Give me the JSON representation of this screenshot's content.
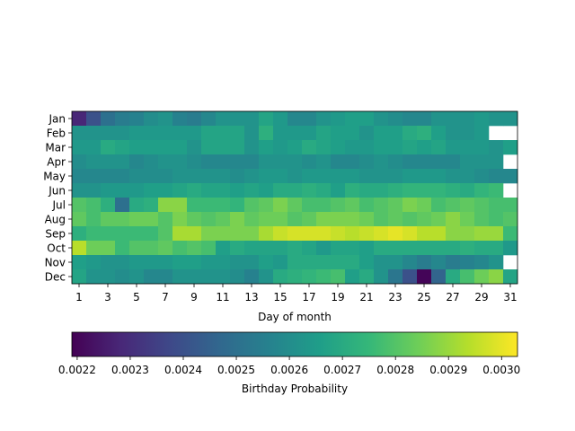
{
  "chart_data": {
    "type": "heatmap",
    "xlabel": "Day of month",
    "colorbar_label": "Birthday Probability",
    "colormap": "viridis",
    "vmin": 0.00219,
    "vmax": 0.00303,
    "colorbar_ticks": [
      "0.0022",
      "0.0023",
      "0.0024",
      "0.0025",
      "0.0026",
      "0.0027",
      "0.0028",
      "0.0029",
      "0.0030"
    ],
    "colorbar_tick_values": [
      0.0022,
      0.0023,
      0.0024,
      0.0025,
      0.0026,
      0.0027,
      0.0028,
      0.0029,
      0.003
    ],
    "months": [
      "Jan",
      "Feb",
      "Mar",
      "Apr",
      "May",
      "Jun",
      "Jul",
      "Aug",
      "Sep",
      "Oct",
      "Nov",
      "Dec"
    ],
    "days": [
      1,
      2,
      3,
      4,
      5,
      6,
      7,
      8,
      9,
      10,
      11,
      12,
      13,
      14,
      15,
      16,
      17,
      18,
      19,
      20,
      21,
      22,
      23,
      24,
      25,
      26,
      27,
      28,
      29,
      30,
      31
    ],
    "x_ticks": [
      1,
      3,
      5,
      7,
      9,
      11,
      13,
      15,
      17,
      19,
      21,
      23,
      25,
      27,
      29,
      31
    ],
    "values": [
      [
        0.00228,
        0.0024,
        0.0025,
        0.00254,
        0.00256,
        0.0026,
        0.00262,
        0.00256,
        0.00254,
        0.00258,
        0.00262,
        0.00262,
        0.00262,
        0.00268,
        0.00264,
        0.00258,
        0.00258,
        0.00262,
        0.00264,
        0.00266,
        0.00266,
        0.00262,
        0.0026,
        0.00258,
        0.00258,
        0.00262,
        0.00262,
        0.00262,
        0.00264,
        0.00262,
        0.00262
      ],
      [
        0.00262,
        0.00262,
        0.00262,
        0.00262,
        0.00264,
        0.00264,
        0.00264,
        0.00264,
        0.00264,
        0.00268,
        0.00268,
        0.00268,
        0.00262,
        0.00272,
        0.00264,
        0.00264,
        0.00264,
        0.00268,
        0.00266,
        0.00266,
        0.00262,
        0.00266,
        0.00266,
        0.0027,
        0.00272,
        0.00266,
        0.00262,
        0.00262,
        0.00264,
        null,
        null
      ],
      [
        0.00264,
        0.00264,
        0.0027,
        0.00268,
        0.00266,
        0.00266,
        0.00266,
        0.00266,
        0.00262,
        0.00268,
        0.00268,
        0.00268,
        0.00262,
        0.00266,
        0.00264,
        0.00266,
        0.0027,
        0.00268,
        0.00266,
        0.00264,
        0.00264,
        0.00266,
        0.00266,
        0.00268,
        0.00266,
        0.00268,
        0.00264,
        0.00264,
        0.00264,
        0.00262,
        0.00266
      ],
      [
        0.0026,
        0.00262,
        0.00262,
        0.00262,
        0.00258,
        0.0026,
        0.00262,
        0.00262,
        0.0026,
        0.00258,
        0.00258,
        0.00258,
        0.00258,
        0.00262,
        0.00262,
        0.00262,
        0.0026,
        0.00262,
        0.00258,
        0.00258,
        0.0026,
        0.00262,
        0.0026,
        0.00258,
        0.00258,
        0.00258,
        0.00258,
        0.00262,
        0.00262,
        0.00262,
        null
      ],
      [
        0.00258,
        0.00258,
        0.00258,
        0.00258,
        0.0026,
        0.0026,
        0.0026,
        0.00262,
        0.00262,
        0.00262,
        0.00262,
        0.0026,
        0.00262,
        0.00264,
        0.00264,
        0.00262,
        0.00264,
        0.00264,
        0.00264,
        0.00264,
        0.00262,
        0.00262,
        0.00262,
        0.00264,
        0.00264,
        0.00264,
        0.00262,
        0.00262,
        0.0026,
        0.00258,
        0.00258
      ],
      [
        0.00262,
        0.00262,
        0.00264,
        0.00264,
        0.00264,
        0.00266,
        0.00266,
        0.00268,
        0.0027,
        0.00268,
        0.00268,
        0.00266,
        0.00268,
        0.00266,
        0.0027,
        0.0027,
        0.00272,
        0.0027,
        0.00266,
        0.00272,
        0.0027,
        0.0027,
        0.00272,
        0.00274,
        0.00274,
        0.00274,
        0.00272,
        0.0027,
        0.00274,
        0.00276,
        null
      ],
      [
        0.0028,
        0.00278,
        0.00272,
        0.0025,
        0.0027,
        0.00272,
        0.00288,
        0.00288,
        0.00276,
        0.00276,
        0.00276,
        0.00274,
        0.0028,
        0.00282,
        0.00286,
        0.00282,
        0.00278,
        0.00278,
        0.0028,
        0.00282,
        0.00278,
        0.0028,
        0.00282,
        0.00286,
        0.00284,
        0.00278,
        0.0028,
        0.00282,
        0.0028,
        0.00278,
        0.00278
      ],
      [
        0.00282,
        0.00278,
        0.00282,
        0.00282,
        0.00284,
        0.00284,
        0.0028,
        0.00286,
        0.00282,
        0.0028,
        0.00282,
        0.00286,
        0.00282,
        0.00284,
        0.00284,
        0.0028,
        0.00282,
        0.00286,
        0.00286,
        0.00286,
        0.00284,
        0.0028,
        0.00282,
        0.0028,
        0.00282,
        0.00284,
        0.00288,
        0.00284,
        0.0028,
        0.00278,
        0.0028
      ],
      [
        0.00272,
        0.00276,
        0.00276,
        0.00276,
        0.00276,
        0.00276,
        0.0028,
        0.00292,
        0.00292,
        0.00286,
        0.00286,
        0.00286,
        0.00286,
        0.00292,
        0.00296,
        0.00298,
        0.00298,
        0.00298,
        0.00296,
        0.00294,
        0.00296,
        0.00298,
        0.003,
        0.00298,
        0.00294,
        0.00294,
        0.00288,
        0.00288,
        0.0029,
        0.0029,
        0.00276
      ],
      [
        0.00294,
        0.00284,
        0.00284,
        0.00276,
        0.0028,
        0.0028,
        0.00282,
        0.00278,
        0.0028,
        0.00278,
        0.00266,
        0.0027,
        0.00268,
        0.00268,
        0.00268,
        0.0027,
        0.00268,
        0.00264,
        0.00268,
        0.00268,
        0.00266,
        0.0027,
        0.0027,
        0.0027,
        0.0027,
        0.0027,
        0.0027,
        0.00272,
        0.0027,
        0.0027,
        0.00264
      ],
      [
        0.00266,
        0.00264,
        0.00262,
        0.00262,
        0.00264,
        0.00264,
        0.00264,
        0.00266,
        0.00266,
        0.00264,
        0.00264,
        0.00262,
        0.00262,
        0.00266,
        0.00264,
        0.0027,
        0.0027,
        0.0027,
        0.0027,
        0.0027,
        0.00266,
        0.00262,
        0.00262,
        0.00258,
        0.00254,
        0.00258,
        0.00254,
        0.00256,
        0.00258,
        0.00262,
        null
      ],
      [
        0.00268,
        0.00262,
        0.00262,
        0.0026,
        0.00262,
        0.00258,
        0.00258,
        0.00262,
        0.00262,
        0.00262,
        0.00262,
        0.0026,
        0.00256,
        0.00262,
        0.0027,
        0.00272,
        0.00274,
        0.00276,
        0.00278,
        0.00266,
        0.0027,
        0.00262,
        0.00252,
        0.0024,
        0.0022,
        0.00246,
        0.0027,
        0.00278,
        0.00284,
        0.00288,
        0.00268
      ]
    ]
  }
}
